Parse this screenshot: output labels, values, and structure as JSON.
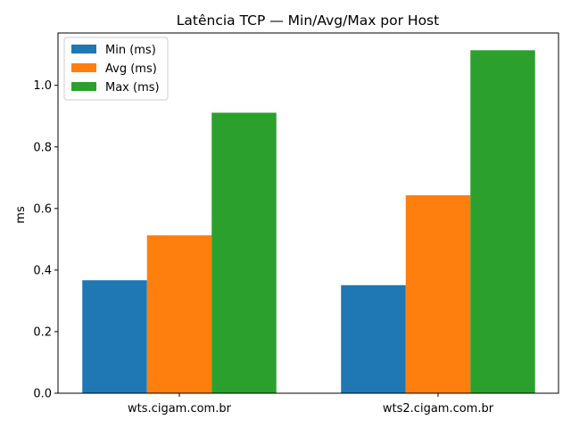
{
  "chart_data": {
    "type": "bar",
    "title": "Latência TCP — Min/Avg/Max por Host",
    "xlabel": "",
    "ylabel": "ms",
    "categories": [
      "wts.cigam.com.br",
      "wts2.cigam.com.br"
    ],
    "series": [
      {
        "name": "Min (ms)",
        "values": [
          0.367,
          0.351
        ],
        "color": "#1f77b4"
      },
      {
        "name": "Avg (ms)",
        "values": [
          0.513,
          0.643
        ],
        "color": "#ff7f0e"
      },
      {
        "name": "Max (ms)",
        "values": [
          0.911,
          1.114
        ],
        "color": "#2ca02c"
      }
    ],
    "ylim": [
      0,
      1.17
    ],
    "yticks": [
      0.0,
      0.2,
      0.4,
      0.6,
      0.8,
      1.0
    ],
    "ytick_labels": [
      "0.0",
      "0.2",
      "0.4",
      "0.6",
      "0.8",
      "1.0"
    ],
    "grid": false,
    "legend_position": "top-left"
  }
}
